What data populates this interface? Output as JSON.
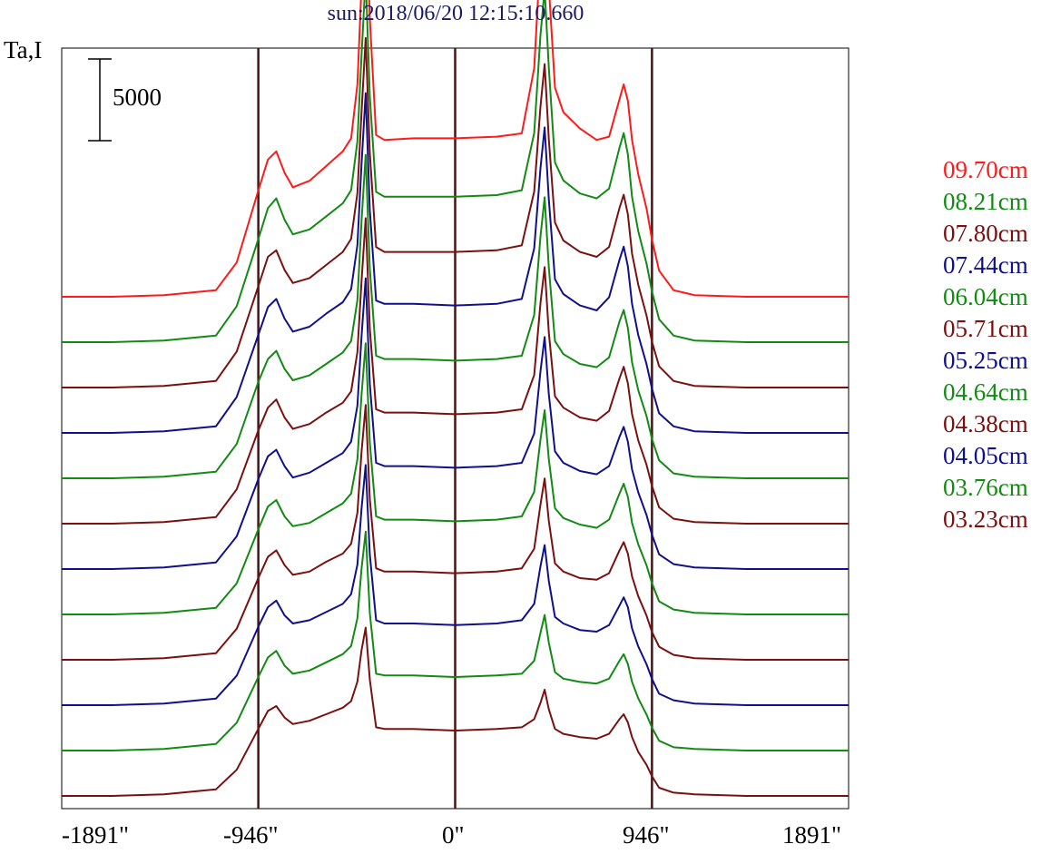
{
  "chart_data": {
    "type": "line",
    "title": "sun:2018/06/20 12:15:10.660",
    "ylabel": "Ta,I",
    "scale_bar_label": "5000",
    "scale_bar_value": 5000,
    "x_ticks": [
      "-1891\"",
      "-946\"",
      "0\"",
      "946\"",
      "1891\""
    ],
    "x_tick_values": [
      -1891,
      -946,
      0,
      946,
      1891
    ],
    "vertical_lines": [
      -946,
      0,
      946
    ],
    "xlim": [
      -1891,
      1891
    ],
    "ylim": [
      0,
      43000
    ],
    "grid": false,
    "legend_position": "right",
    "x": [
      -1891,
      -1650,
      -1400,
      -1150,
      -1050,
      -946,
      -900,
      -860,
      -820,
      -780,
      -700,
      -620,
      -540,
      -500,
      -470,
      -450,
      -430,
      -410,
      -380,
      -340,
      -200,
      0,
      200,
      320,
      380,
      410,
      430,
      450,
      480,
      520,
      600,
      680,
      740,
      790,
      810,
      830,
      850,
      880,
      920,
      946,
      980,
      1050,
      1150,
      1400,
      1650,
      1891
    ],
    "series": [
      {
        "name": "09.70cm",
        "color": "#ff1a1a",
        "values": [
          0,
          0,
          100,
          400,
          2100,
          6500,
          8400,
          8900,
          7600,
          6700,
          7100,
          8000,
          8900,
          9700,
          13000,
          19000,
          24500,
          17000,
          9900,
          9600,
          9700,
          9700,
          9800,
          10000,
          14000,
          21000,
          24100,
          19000,
          12800,
          11300,
          10300,
          9600,
          9800,
          12100,
          13000,
          12000,
          9600,
          7500,
          5400,
          3500,
          1600,
          400,
          100,
          0,
          0,
          0
        ]
      },
      {
        "name": "08.21cm",
        "color": "#138a13",
        "values": [
          0,
          0,
          100,
          400,
          2200,
          6300,
          8200,
          8800,
          7500,
          6600,
          6900,
          7700,
          8500,
          9300,
          12300,
          17500,
          22400,
          15000,
          9200,
          8900,
          8900,
          8900,
          9000,
          9300,
          12800,
          18800,
          21600,
          16800,
          11000,
          9900,
          9100,
          8800,
          9400,
          11900,
          12800,
          11500,
          8900,
          6800,
          4800,
          3100,
          1400,
          400,
          100,
          0,
          0,
          0
        ]
      },
      {
        "name": "07.80cm",
        "color": "#7a1010",
        "values": [
          0,
          0,
          100,
          400,
          2200,
          6200,
          8000,
          8400,
          7200,
          6400,
          6700,
          7500,
          8300,
          9100,
          11900,
          16800,
          21400,
          14300,
          8600,
          8300,
          8300,
          8300,
          8400,
          8700,
          12000,
          17200,
          19800,
          15200,
          10100,
          9000,
          8300,
          8000,
          8600,
          11000,
          11800,
          10600,
          8200,
          6300,
          4400,
          2800,
          1300,
          400,
          100,
          0,
          0,
          0
        ]
      },
      {
        "name": "07.44cm",
        "color": "#10108c",
        "values": [
          0,
          0,
          100,
          400,
          2200,
          6000,
          7700,
          8200,
          7000,
          6200,
          6500,
          7300,
          8000,
          8800,
          11500,
          16400,
          20800,
          13600,
          8100,
          7900,
          7900,
          7800,
          7900,
          8200,
          11300,
          16200,
          18700,
          14300,
          9400,
          8500,
          7800,
          7500,
          8300,
          10600,
          11400,
          10200,
          7900,
          6000,
          4200,
          2700,
          1200,
          400,
          100,
          0,
          0,
          0
        ]
      },
      {
        "name": "06.04cm",
        "color": "#138a13",
        "values": [
          0,
          0,
          100,
          400,
          2100,
          5900,
          7300,
          7800,
          6700,
          6000,
          6300,
          7000,
          7700,
          8400,
          10900,
          15700,
          19800,
          12800,
          7500,
          7300,
          7300,
          7200,
          7300,
          7500,
          10000,
          14800,
          17200,
          12900,
          8400,
          7600,
          7000,
          6800,
          7400,
          9600,
          10300,
          9200,
          7100,
          5400,
          3800,
          2400,
          1100,
          300,
          100,
          0,
          0,
          0
        ]
      },
      {
        "name": "05.71cm",
        "color": "#7a1010",
        "values": [
          0,
          0,
          100,
          400,
          2100,
          5700,
          7100,
          7600,
          6500,
          5800,
          6100,
          6800,
          7400,
          8100,
          10500,
          14800,
          18700,
          11900,
          7000,
          6800,
          6800,
          6700,
          6800,
          7000,
          9100,
          13500,
          15700,
          11700,
          7800,
          7100,
          6500,
          6300,
          6900,
          8900,
          9600,
          8600,
          6700,
          5100,
          3600,
          2300,
          1000,
          300,
          100,
          0,
          0,
          0
        ]
      },
      {
        "name": "05.25cm",
        "color": "#10108c",
        "values": [
          0,
          0,
          100,
          400,
          2000,
          5500,
          6900,
          7300,
          6300,
          5600,
          5900,
          6500,
          7100,
          7800,
          10000,
          14200,
          17800,
          11300,
          6500,
          6300,
          6300,
          6200,
          6300,
          6500,
          8300,
          12100,
          14200,
          10700,
          7200,
          6500,
          6000,
          5800,
          6300,
          8100,
          8700,
          7800,
          6100,
          4700,
          3300,
          2100,
          900,
          300,
          100,
          0,
          0,
          0
        ]
      },
      {
        "name": "04.64cm",
        "color": "#138a13",
        "values": [
          0,
          0,
          100,
          400,
          1900,
          5200,
          6600,
          7000,
          6000,
          5400,
          5600,
          6200,
          6800,
          7400,
          9500,
          13400,
          16600,
          10500,
          6000,
          5800,
          5800,
          5700,
          5800,
          6000,
          7500,
          10700,
          12500,
          9500,
          6500,
          5900,
          5500,
          5300,
          5800,
          7400,
          8000,
          7200,
          5600,
          4300,
          3000,
          1900,
          800,
          300,
          100,
          0,
          0,
          0
        ]
      },
      {
        "name": "04.38cm",
        "color": "#7a1010",
        "values": [
          0,
          0,
          100,
          400,
          1900,
          5000,
          6300,
          6700,
          5800,
          5200,
          5400,
          6000,
          6500,
          7100,
          9000,
          12700,
          15600,
          9800,
          5600,
          5400,
          5400,
          5300,
          5400,
          5600,
          6800,
          9500,
          11100,
          8500,
          5900,
          5400,
          5000,
          4900,
          5300,
          6700,
          7200,
          6500,
          5100,
          3900,
          2700,
          1700,
          800,
          300,
          100,
          0,
          0,
          0
        ]
      },
      {
        "name": "04.05cm",
        "color": "#10108c",
        "values": [
          0,
          0,
          100,
          400,
          1800,
          4800,
          6000,
          6400,
          5500,
          5000,
          5200,
          5700,
          6200,
          6800,
          8600,
          12000,
          14700,
          9200,
          5200,
          5000,
          5000,
          4900,
          5000,
          5200,
          6200,
          8500,
          9800,
          7600,
          5400,
          5000,
          4600,
          4500,
          4900,
          6100,
          6600,
          6000,
          4700,
          3600,
          2500,
          1600,
          700,
          300,
          100,
          0,
          0,
          0
        ]
      },
      {
        "name": "03.76cm",
        "color": "#138a13",
        "values": [
          0,
          0,
          100,
          400,
          1700,
          4500,
          5700,
          6100,
          5200,
          4700,
          4900,
          5400,
          5900,
          6400,
          8100,
          11100,
          13400,
          8400,
          4700,
          4600,
          4600,
          4500,
          4600,
          4700,
          5500,
          7200,
          8300,
          6600,
          4800,
          4400,
          4200,
          4100,
          4400,
          5500,
          5900,
          5300,
          4200,
          3200,
          2200,
          1400,
          600,
          200,
          100,
          0,
          0,
          0
        ]
      },
      {
        "name": "03.23cm",
        "color": "#7a1010",
        "values": [
          0,
          0,
          100,
          400,
          1600,
          4100,
          5200,
          5500,
          4800,
          4400,
          4600,
          5000,
          5400,
          5800,
          7000,
          8900,
          10300,
          7100,
          4200,
          4100,
          4100,
          4000,
          4100,
          4200,
          4700,
          5700,
          6500,
          5300,
          4100,
          3800,
          3600,
          3500,
          3800,
          4700,
          5000,
          4500,
          3600,
          2700,
          1900,
          1200,
          500,
          200,
          100,
          0,
          0,
          0
        ]
      }
    ]
  }
}
